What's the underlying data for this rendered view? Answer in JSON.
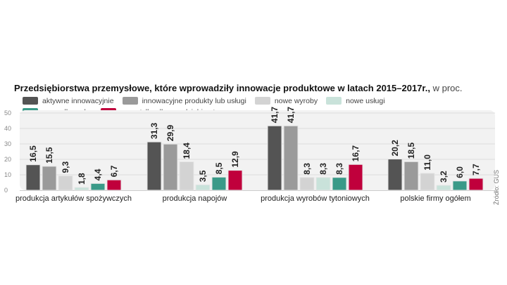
{
  "chart_data": {
    "type": "bar",
    "title": "Przedsiębiorstwa przemysłowe, które wprowadziły innowacje produktowe w latach 2015–2017r.,",
    "unit": "w proc.",
    "categories": [
      "produkcja artykułów spożywczych",
      "produkcja napojów",
      "produkcja wyrobów tytoniowych",
      "polskie firmy ogółem"
    ],
    "series": [
      {
        "name": "aktywne innowacyjnie",
        "color": "#545454",
        "values": [
          16.5,
          31.3,
          41.7,
          20.2
        ]
      },
      {
        "name": "innowacyjne produkty lub usługi",
        "color": "#9a9a9a",
        "values": [
          15.5,
          29.9,
          41.7,
          18.5
        ]
      },
      {
        "name": "nowe wyroby",
        "color": "#d3d3d3",
        "values": [
          9.3,
          18.4,
          8.3,
          11.0
        ]
      },
      {
        "name": "nowe usługi",
        "color": "#c9e2da",
        "values": [
          1.8,
          3.5,
          8.3,
          3.2
        ]
      },
      {
        "name": "nowe dla rynku",
        "color": "#3a9a88",
        "values": [
          4.4,
          8.5,
          8.3,
          6.0
        ]
      },
      {
        "name": "nowe tylko dla przedsiębiorstwa",
        "color": "#c0003c",
        "values": [
          6.7,
          12.9,
          16.7,
          7.7
        ]
      }
    ],
    "value_labels": [
      [
        "16,5",
        "31,3",
        "41,7",
        "20,2"
      ],
      [
        "15,5",
        "29,9",
        "41,7",
        "18,5"
      ],
      [
        "9,3",
        "18,4",
        "8,3",
        "11,0"
      ],
      [
        "1,8",
        "3,5",
        "8,3",
        "3,2"
      ],
      [
        "4,4",
        "8,5",
        "8,3",
        "6,0"
      ],
      [
        "6,7",
        "12,9",
        "16,7",
        "7,7"
      ]
    ],
    "yticks": [
      "0",
      "10",
      "20",
      "30",
      "40",
      "50"
    ],
    "ylim": [
      0,
      50
    ],
    "grid": true,
    "legend": "top-left",
    "source": "Źródło: GUS"
  }
}
